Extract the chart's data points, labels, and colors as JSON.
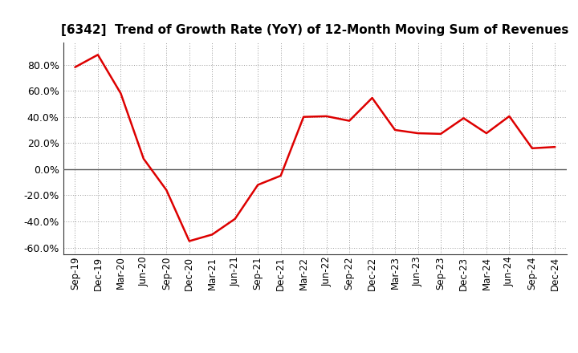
{
  "title": "[6342]  Trend of Growth Rate (YoY) of 12-Month Moving Sum of Revenues",
  "line_color": "#dd0000",
  "background_color": "#ffffff",
  "grid_color": "#999999",
  "zero_line_color": "#555555",
  "spine_color": "#333333",
  "ylim": [
    -0.65,
    0.97
  ],
  "yticks": [
    -0.6,
    -0.4,
    -0.2,
    0.0,
    0.2,
    0.4,
    0.6,
    0.8
  ],
  "labels": [
    "Sep-19",
    "Dec-19",
    "Mar-20",
    "Jun-20",
    "Sep-20",
    "Dec-20",
    "Mar-21",
    "Jun-21",
    "Sep-21",
    "Dec-21",
    "Mar-22",
    "Jun-22",
    "Sep-22",
    "Dec-22",
    "Mar-23",
    "Jun-23",
    "Sep-23",
    "Dec-23",
    "Mar-24",
    "Jun-24",
    "Sep-24",
    "Dec-24"
  ],
  "values": [
    0.78,
    0.875,
    0.58,
    0.08,
    -0.16,
    -0.55,
    -0.5,
    -0.38,
    -0.12,
    -0.05,
    0.4,
    0.405,
    0.37,
    0.545,
    0.3,
    0.275,
    0.27,
    0.39,
    0.275,
    0.405,
    0.16,
    0.17
  ]
}
